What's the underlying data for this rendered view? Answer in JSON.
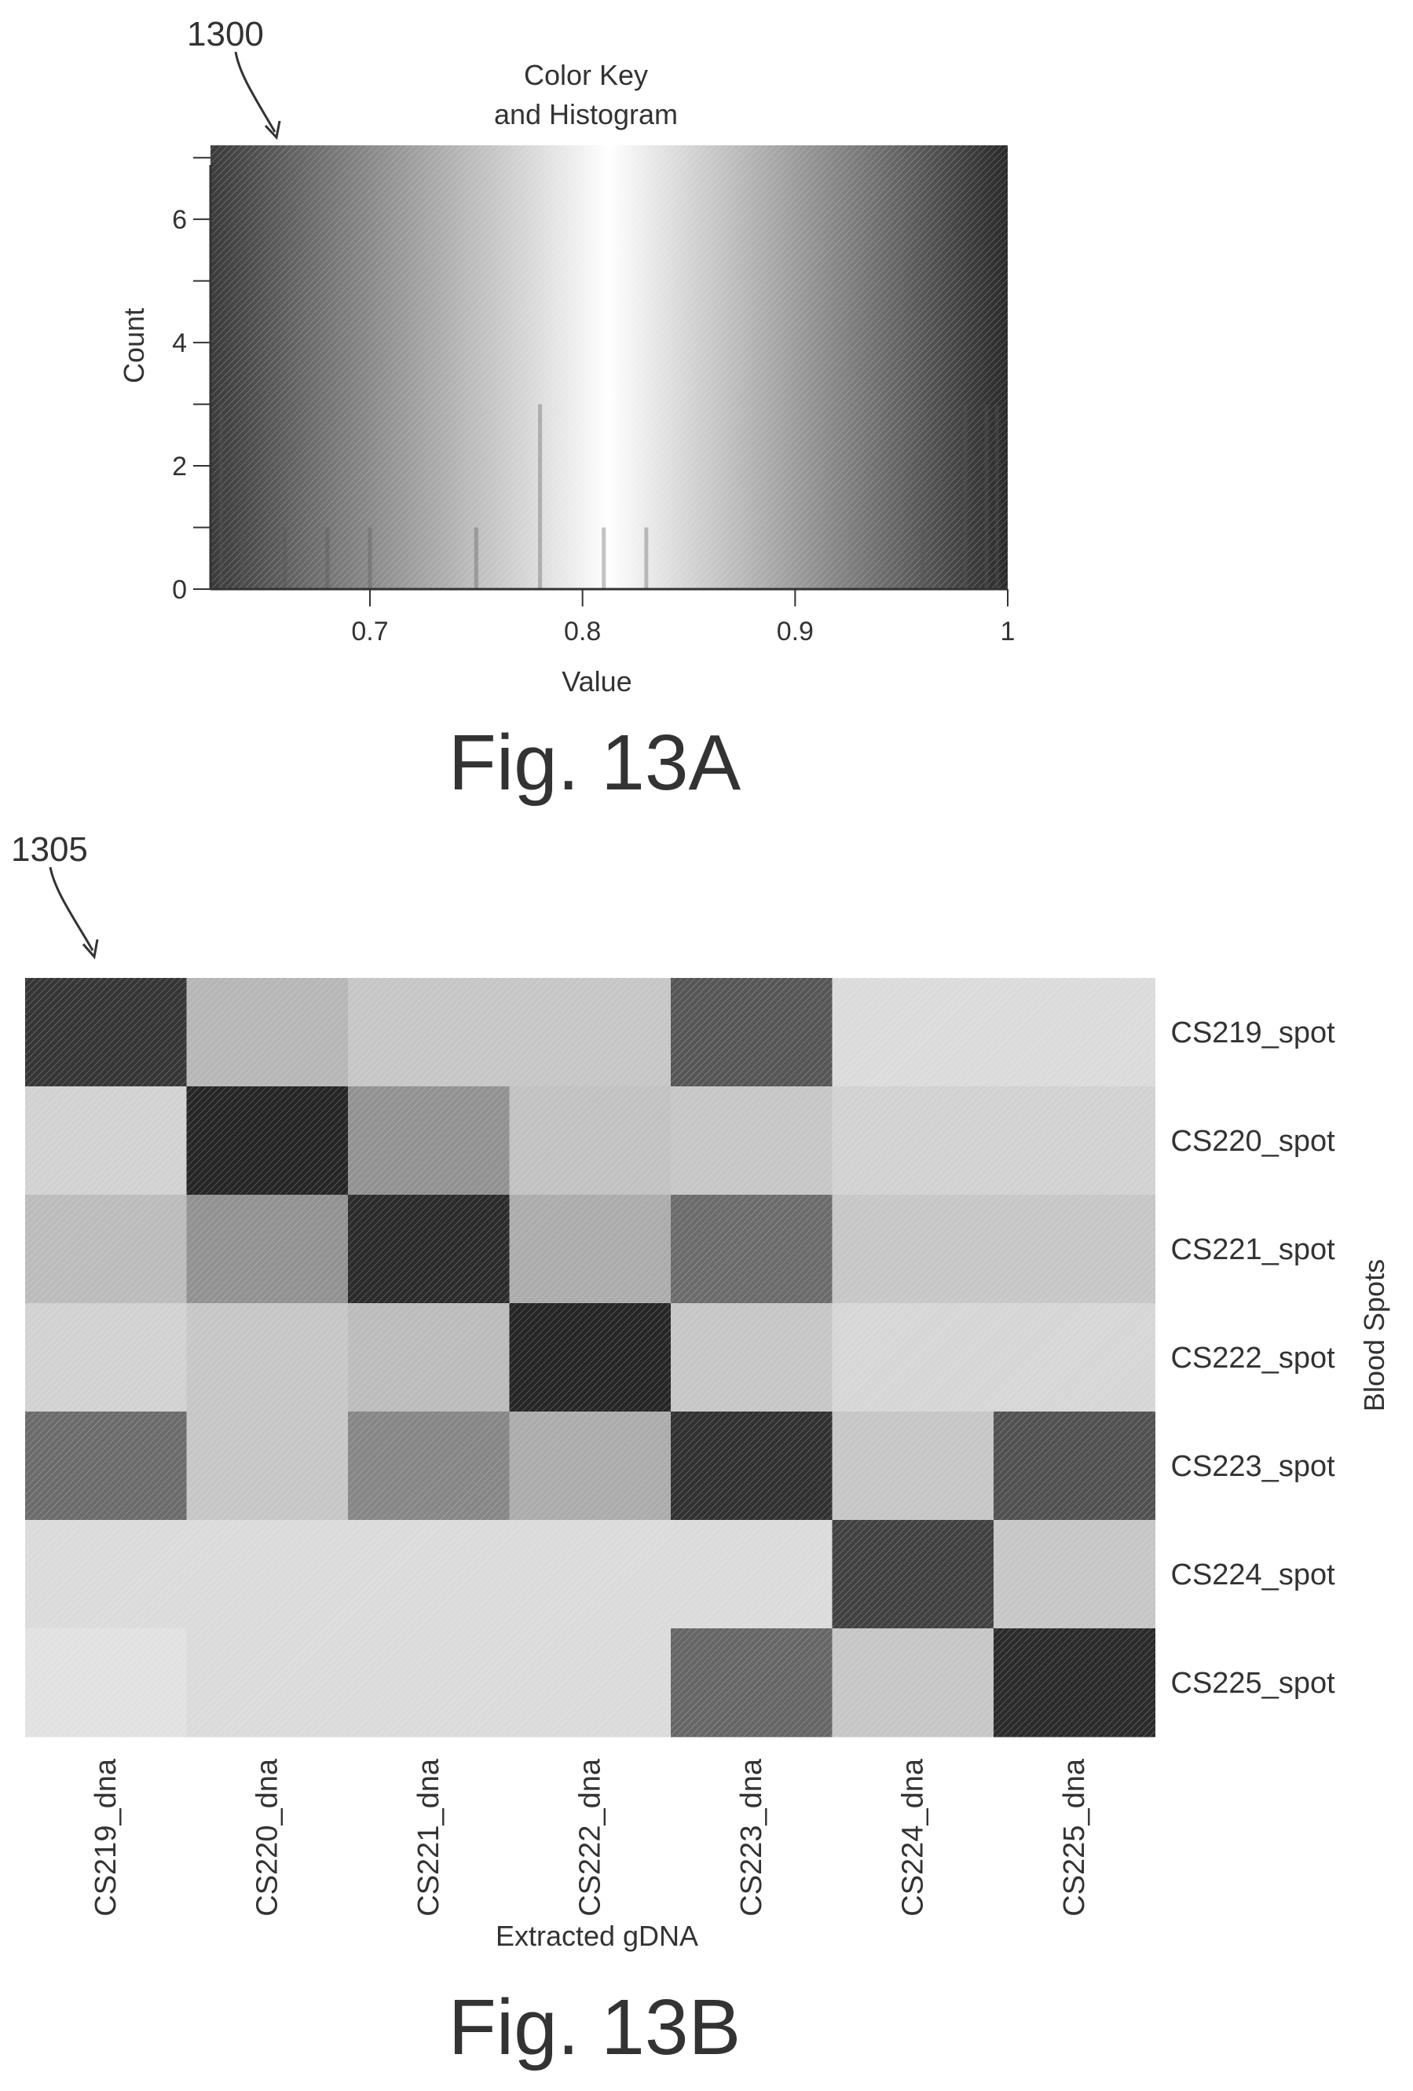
{
  "figure_a": {
    "ref_number": "1300",
    "caption": "Fig. 13A"
  },
  "figure_b": {
    "ref_number": "1305",
    "caption": "Fig. 13B"
  },
  "chart_data": [
    {
      "type": "bar",
      "title_line1": "Color Key",
      "title_line2": "and Histogram",
      "xlabel": "Value",
      "ylabel": "Count",
      "xlim": [
        0.625,
        1.0
      ],
      "ylim": [
        0,
        7.2
      ],
      "x_ticks": [
        0.7,
        0.8,
        0.9,
        1
      ],
      "x_tick_labels": [
        "0.7",
        "0.8",
        "0.9",
        "1"
      ],
      "y_ticks": [
        0,
        2,
        4,
        6
      ],
      "y_tick_labels": [
        "0",
        "2",
        "4",
        "6"
      ],
      "colors": {
        "low": "#3a3a3a",
        "mid": "#ffffff",
        "high": "#2a2a2a"
      },
      "bins": [
        {
          "x": 0.63,
          "count": 3
        },
        {
          "x": 0.64,
          "count": 1
        },
        {
          "x": 0.66,
          "count": 1
        },
        {
          "x": 0.68,
          "count": 1
        },
        {
          "x": 0.7,
          "count": 1
        },
        {
          "x": 0.75,
          "count": 1
        },
        {
          "x": 0.78,
          "count": 3
        },
        {
          "x": 0.81,
          "count": 1
        },
        {
          "x": 0.83,
          "count": 1
        },
        {
          "x": 0.96,
          "count": 1
        },
        {
          "x": 0.98,
          "count": 3
        },
        {
          "x": 0.99,
          "count": 3
        },
        {
          "x": 0.995,
          "count": 3
        }
      ]
    },
    {
      "type": "heatmap",
      "xlabel": "Extracted gDNA",
      "ylabel": "Blood Spots",
      "columns": [
        "CS219_dna",
        "CS220_dna",
        "CS221_dna",
        "CS222_dna",
        "CS223_dna",
        "CS224_dna",
        "CS225_dna"
      ],
      "rows": [
        "CS219_spot",
        "CS220_spot",
        "CS221_spot",
        "CS222_spot",
        "CS223_spot",
        "CS224_spot",
        "CS225_spot"
      ],
      "values": [
        [
          0.97,
          0.73,
          0.7,
          0.7,
          0.91,
          0.66,
          0.66
        ],
        [
          0.68,
          1.0,
          0.8,
          0.71,
          0.7,
          0.68,
          0.68
        ],
        [
          0.72,
          0.8,
          0.99,
          0.75,
          0.87,
          0.7,
          0.7
        ],
        [
          0.68,
          0.7,
          0.72,
          1.0,
          0.7,
          0.67,
          0.67
        ],
        [
          0.87,
          0.7,
          0.82,
          0.75,
          0.98,
          0.7,
          0.92
        ],
        [
          0.66,
          0.66,
          0.66,
          0.66,
          0.66,
          0.95,
          0.7
        ],
        [
          0.65,
          0.66,
          0.66,
          0.66,
          0.88,
          0.7,
          0.99
        ]
      ],
      "value_range": [
        0.625,
        1.0
      ]
    }
  ]
}
